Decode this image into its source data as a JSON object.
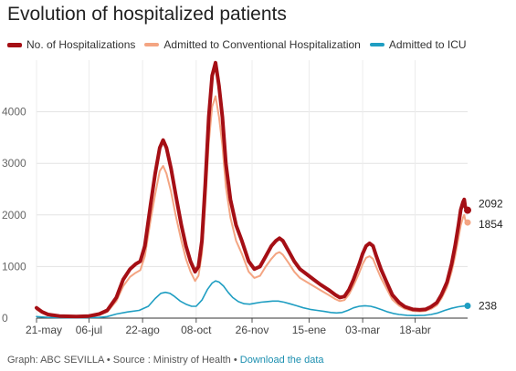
{
  "title": "Evolution of hospitalized patients",
  "footer": {
    "graph_label": "Graph: ABC SEVILLA",
    "separator": "•",
    "source_label": "Source : Ministry of Health",
    "download_link": "Download the data"
  },
  "chart_data": {
    "type": "line",
    "title": "Evolution of hospitalized patients",
    "xlabel": "",
    "ylabel": "",
    "x_tick_labels": [
      "21-may",
      "06-jul",
      "22-ago",
      "08-oct",
      "26-nov",
      "15-ene",
      "03-mar",
      "18-abr"
    ],
    "x_tick_positions": [
      0,
      46,
      93,
      140,
      189,
      239,
      286,
      332
    ],
    "y_ticks": [
      0,
      1000,
      2000,
      3000,
      4000
    ],
    "ylim": [
      0,
      5000
    ],
    "xlim": [
      0,
      378
    ],
    "grid": true,
    "legend_position": "top-left",
    "series": [
      {
        "name": "No. of Hospitalizations",
        "color": "#a50f15",
        "end_label": "2092",
        "points": [
          [
            0,
            200
          ],
          [
            5,
            120
          ],
          [
            10,
            70
          ],
          [
            20,
            40
          ],
          [
            35,
            30
          ],
          [
            46,
            40
          ],
          [
            55,
            80
          ],
          [
            62,
            150
          ],
          [
            70,
            400
          ],
          [
            76,
            750
          ],
          [
            82,
            950
          ],
          [
            87,
            1050
          ],
          [
            91,
            1100
          ],
          [
            95,
            1400
          ],
          [
            100,
            2200
          ],
          [
            104,
            2800
          ],
          [
            108,
            3300
          ],
          [
            111,
            3450
          ],
          [
            114,
            3300
          ],
          [
            118,
            2900
          ],
          [
            122,
            2400
          ],
          [
            127,
            1800
          ],
          [
            131,
            1400
          ],
          [
            135,
            1100
          ],
          [
            139,
            900
          ],
          [
            142,
            1000
          ],
          [
            145,
            1500
          ],
          [
            148,
            2600
          ],
          [
            151,
            3900
          ],
          [
            154,
            4700
          ],
          [
            157,
            4950
          ],
          [
            160,
            4500
          ],
          [
            163,
            3900
          ],
          [
            166,
            3000
          ],
          [
            170,
            2300
          ],
          [
            175,
            1800
          ],
          [
            180,
            1500
          ],
          [
            186,
            1100
          ],
          [
            191,
            950
          ],
          [
            196,
            1000
          ],
          [
            201,
            1200
          ],
          [
            206,
            1400
          ],
          [
            210,
            1500
          ],
          [
            213,
            1550
          ],
          [
            216,
            1500
          ],
          [
            221,
            1300
          ],
          [
            226,
            1100
          ],
          [
            231,
            950
          ],
          [
            237,
            850
          ],
          [
            243,
            750
          ],
          [
            249,
            650
          ],
          [
            256,
            550
          ],
          [
            262,
            450
          ],
          [
            266,
            400
          ],
          [
            270,
            420
          ],
          [
            274,
            550
          ],
          [
            278,
            750
          ],
          [
            283,
            1050
          ],
          [
            286,
            1250
          ],
          [
            289,
            1400
          ],
          [
            292,
            1450
          ],
          [
            295,
            1400
          ],
          [
            298,
            1200
          ],
          [
            302,
            950
          ],
          [
            307,
            700
          ],
          [
            312,
            450
          ],
          [
            318,
            300
          ],
          [
            323,
            220
          ],
          [
            330,
            170
          ],
          [
            336,
            160
          ],
          [
            341,
            170
          ],
          [
            346,
            220
          ],
          [
            351,
            300
          ],
          [
            355,
            450
          ],
          [
            360,
            700
          ],
          [
            364,
            1050
          ],
          [
            367,
            1400
          ],
          [
            370,
            1800
          ],
          [
            372,
            2100
          ],
          [
            374,
            2250
          ],
          [
            375,
            2300
          ],
          [
            376,
            2150
          ],
          [
            378,
            2092
          ]
        ]
      },
      {
        "name": "Admitted to Conventional Hospitalization",
        "color": "#f4a582",
        "end_label": "1854",
        "points": [
          [
            0,
            170
          ],
          [
            5,
            100
          ],
          [
            10,
            60
          ],
          [
            20,
            35
          ],
          [
            35,
            25
          ],
          [
            46,
            35
          ],
          [
            55,
            65
          ],
          [
            62,
            120
          ],
          [
            70,
            330
          ],
          [
            76,
            620
          ],
          [
            82,
            800
          ],
          [
            87,
            880
          ],
          [
            91,
            930
          ],
          [
            95,
            1200
          ],
          [
            100,
            1900
          ],
          [
            104,
            2400
          ],
          [
            108,
            2850
          ],
          [
            111,
            2950
          ],
          [
            114,
            2800
          ],
          [
            118,
            2450
          ],
          [
            122,
            2000
          ],
          [
            127,
            1500
          ],
          [
            131,
            1150
          ],
          [
            135,
            900
          ],
          [
            139,
            720
          ],
          [
            142,
            820
          ],
          [
            145,
            1250
          ],
          [
            148,
            2200
          ],
          [
            151,
            3400
          ],
          [
            154,
            4100
          ],
          [
            157,
            4300
          ],
          [
            160,
            3900
          ],
          [
            163,
            3350
          ],
          [
            166,
            2550
          ],
          [
            170,
            1950
          ],
          [
            175,
            1500
          ],
          [
            180,
            1250
          ],
          [
            186,
            900
          ],
          [
            191,
            780
          ],
          [
            196,
            820
          ],
          [
            201,
            1000
          ],
          [
            206,
            1150
          ],
          [
            210,
            1250
          ],
          [
            213,
            1280
          ],
          [
            216,
            1230
          ],
          [
            221,
            1070
          ],
          [
            226,
            900
          ],
          [
            231,
            780
          ],
          [
            237,
            700
          ],
          [
            243,
            620
          ],
          [
            249,
            540
          ],
          [
            256,
            450
          ],
          [
            262,
            370
          ],
          [
            266,
            330
          ],
          [
            270,
            350
          ],
          [
            274,
            460
          ],
          [
            278,
            630
          ],
          [
            283,
            880
          ],
          [
            286,
            1050
          ],
          [
            289,
            1170
          ],
          [
            292,
            1200
          ],
          [
            295,
            1150
          ],
          [
            298,
            990
          ],
          [
            302,
            780
          ],
          [
            307,
            570
          ],
          [
            312,
            360
          ],
          [
            318,
            240
          ],
          [
            323,
            180
          ],
          [
            330,
            140
          ],
          [
            336,
            130
          ],
          [
            341,
            140
          ],
          [
            346,
            180
          ],
          [
            351,
            250
          ],
          [
            355,
            380
          ],
          [
            360,
            600
          ],
          [
            364,
            900
          ],
          [
            367,
            1200
          ],
          [
            370,
            1550
          ],
          [
            372,
            1800
          ],
          [
            374,
            1950
          ],
          [
            375,
            2000
          ],
          [
            376,
            1900
          ],
          [
            378,
            1854
          ]
        ]
      },
      {
        "name": "Admitted to ICU",
        "color": "#1f9ec2",
        "end_label": "238",
        "points": [
          [
            0,
            30
          ],
          [
            10,
            15
          ],
          [
            20,
            8
          ],
          [
            35,
            5
          ],
          [
            46,
            8
          ],
          [
            55,
            15
          ],
          [
            62,
            30
          ],
          [
            70,
            80
          ],
          [
            80,
            120
          ],
          [
            90,
            150
          ],
          [
            98,
            230
          ],
          [
            104,
            380
          ],
          [
            109,
            480
          ],
          [
            113,
            500
          ],
          [
            117,
            480
          ],
          [
            121,
            420
          ],
          [
            126,
            330
          ],
          [
            131,
            270
          ],
          [
            136,
            230
          ],
          [
            140,
            230
          ],
          [
            145,
            350
          ],
          [
            150,
            560
          ],
          [
            154,
            680
          ],
          [
            157,
            720
          ],
          [
            160,
            700
          ],
          [
            164,
            620
          ],
          [
            168,
            500
          ],
          [
            172,
            400
          ],
          [
            177,
            320
          ],
          [
            182,
            280
          ],
          [
            187,
            270
          ],
          [
            192,
            290
          ],
          [
            197,
            310
          ],
          [
            202,
            320
          ],
          [
            207,
            330
          ],
          [
            212,
            330
          ],
          [
            217,
            310
          ],
          [
            222,
            280
          ],
          [
            228,
            240
          ],
          [
            234,
            200
          ],
          [
            240,
            170
          ],
          [
            246,
            150
          ],
          [
            252,
            130
          ],
          [
            258,
            110
          ],
          [
            263,
            100
          ],
          [
            268,
            110
          ],
          [
            273,
            150
          ],
          [
            278,
            200
          ],
          [
            283,
            230
          ],
          [
            288,
            240
          ],
          [
            293,
            230
          ],
          [
            298,
            200
          ],
          [
            303,
            160
          ],
          [
            308,
            120
          ],
          [
            313,
            90
          ],
          [
            318,
            70
          ],
          [
            325,
            55
          ],
          [
            332,
            50
          ],
          [
            340,
            55
          ],
          [
            346,
            70
          ],
          [
            352,
            100
          ],
          [
            358,
            150
          ],
          [
            364,
            190
          ],
          [
            370,
            220
          ],
          [
            375,
            235
          ],
          [
            378,
            238
          ]
        ]
      }
    ]
  }
}
